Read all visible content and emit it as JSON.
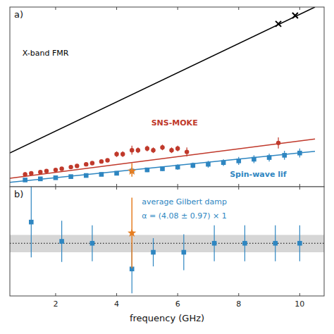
{
  "chart_data": [
    {
      "type": "scatter",
      "title": "a)",
      "xlim": [
        0.5,
        10.8
      ],
      "xticks": [
        2,
        4,
        6,
        8,
        10
      ],
      "ylim": [
        -10,
        310
      ],
      "yticks": [],
      "tick_labels": false,
      "series": [
        {
          "type": "line",
          "color": "#000000",
          "line_style": "solid",
          "x": [
            0.5,
            10.5
          ],
          "values": [
            50,
            310
          ]
        },
        {
          "type": "scatter",
          "color": "#000000",
          "marker": "cross",
          "x": [
            9.3,
            9.85
          ],
          "values": [
            280,
            295
          ]
        },
        {
          "type": "line",
          "color": "#c0392b",
          "line_style": "solid",
          "x": [
            0.5,
            10.5
          ],
          "values": [
            5,
            75
          ]
        },
        {
          "type": "scatter",
          "color": "#c0392b",
          "marker": "circle",
          "x": [
            1.0,
            1.2,
            1.5,
            1.7,
            2.0,
            2.2,
            2.5,
            2.7,
            3.0,
            3.2,
            3.5,
            3.7,
            4.0,
            4.2,
            4.5,
            4.7,
            5.0,
            5.2,
            5.5,
            5.8,
            6.0,
            6.3,
            9.3
          ],
          "values": [
            12,
            14,
            16,
            18,
            20,
            22,
            25,
            27,
            30,
            32,
            35,
            37,
            48,
            48,
            55,
            55,
            58,
            55,
            60,
            55,
            58,
            52,
            68
          ],
          "errors": [
            4,
            3,
            3,
            3,
            3,
            3,
            3,
            3,
            3,
            3,
            3,
            3,
            5,
            5,
            8,
            5,
            5,
            5,
            5,
            5,
            5,
            8,
            10
          ]
        },
        {
          "type": "line",
          "color": "#2e86c1",
          "line_style": "solid",
          "x": [
            0.5,
            10.5
          ],
          "values": [
            -2,
            53
          ]
        },
        {
          "type": "scatter",
          "color": "#2e86c1",
          "marker": "square",
          "x": [
            1.0,
            1.5,
            2.0,
            2.5,
            3.0,
            3.5,
            4.0,
            4.5,
            5.0,
            5.5,
            6.0,
            6.5,
            7.0,
            7.5,
            8.0,
            8.5,
            9.0,
            9.5,
            10.0
          ],
          "values": [
            2,
            4,
            6,
            8,
            10,
            12,
            14,
            18,
            20,
            22,
            25,
            28,
            30,
            33,
            36,
            39,
            42,
            46,
            50
          ],
          "errors": [
            2,
            2,
            2,
            2,
            2,
            3,
            3,
            4,
            4,
            4,
            5,
            5,
            6,
            6,
            7,
            7,
            7,
            8,
            8
          ]
        },
        {
          "type": "scatter",
          "color": "#e67e22",
          "marker": "star",
          "x": [
            4.5
          ],
          "values": [
            18
          ],
          "error_down": [
            10
          ],
          "error_up": [
            14
          ]
        }
      ],
      "annotations": [
        {
          "text": "X-band FMR",
          "color": "#000000"
        },
        {
          "text": "SNS-MOKE",
          "color": "#c0392b"
        },
        {
          "text": "Spin-wave lif",
          "color": "#2e86c1"
        }
      ]
    },
    {
      "type": "scatter",
      "title": "b)",
      "xlabel": "frequency (GHz)",
      "xlim": [
        0.5,
        10.8
      ],
      "xticks": [
        2,
        4,
        6,
        8,
        10
      ],
      "ylim": [
        -0.8,
        0.9
      ],
      "yticks": [],
      "tick_labels": "x",
      "series": [
        {
          "type": "scatter",
          "color": "#2e86c1",
          "marker": "square",
          "x": [
            1.2,
            2.2,
            3.2,
            4.5,
            5.2,
            6.2,
            7.2,
            8.2,
            9.2,
            10.0
          ],
          "values": [
            0.35,
            0.05,
            0.02,
            -0.38,
            -0.12,
            -0.12,
            0.02,
            0.02,
            0.02,
            0.02
          ],
          "errors": [
            0.55,
            0.32,
            0.28,
            0.38,
            0.22,
            0.28,
            0.28,
            0.28,
            0.28,
            0.28
          ]
        },
        {
          "type": "scatter",
          "color": "#e67e22",
          "marker": "star",
          "x": [
            4.5
          ],
          "values": [
            0.18
          ],
          "error_down": [
            0.55
          ],
          "error_up": [
            0.55
          ]
        }
      ],
      "bands": [
        {
          "ymin": -0.12,
          "ymax": 0.15,
          "color": "#bbbbbb"
        }
      ],
      "hlines": [
        {
          "y": 0.02,
          "color": "#000000",
          "line_style": "dotted"
        }
      ],
      "annotations": [
        {
          "text": "average Gilbert damp",
          "color": "#2e86c1"
        },
        {
          "text": "α = (4.08 ± 0.97) × 1",
          "color": "#2e86c1"
        }
      ]
    }
  ]
}
